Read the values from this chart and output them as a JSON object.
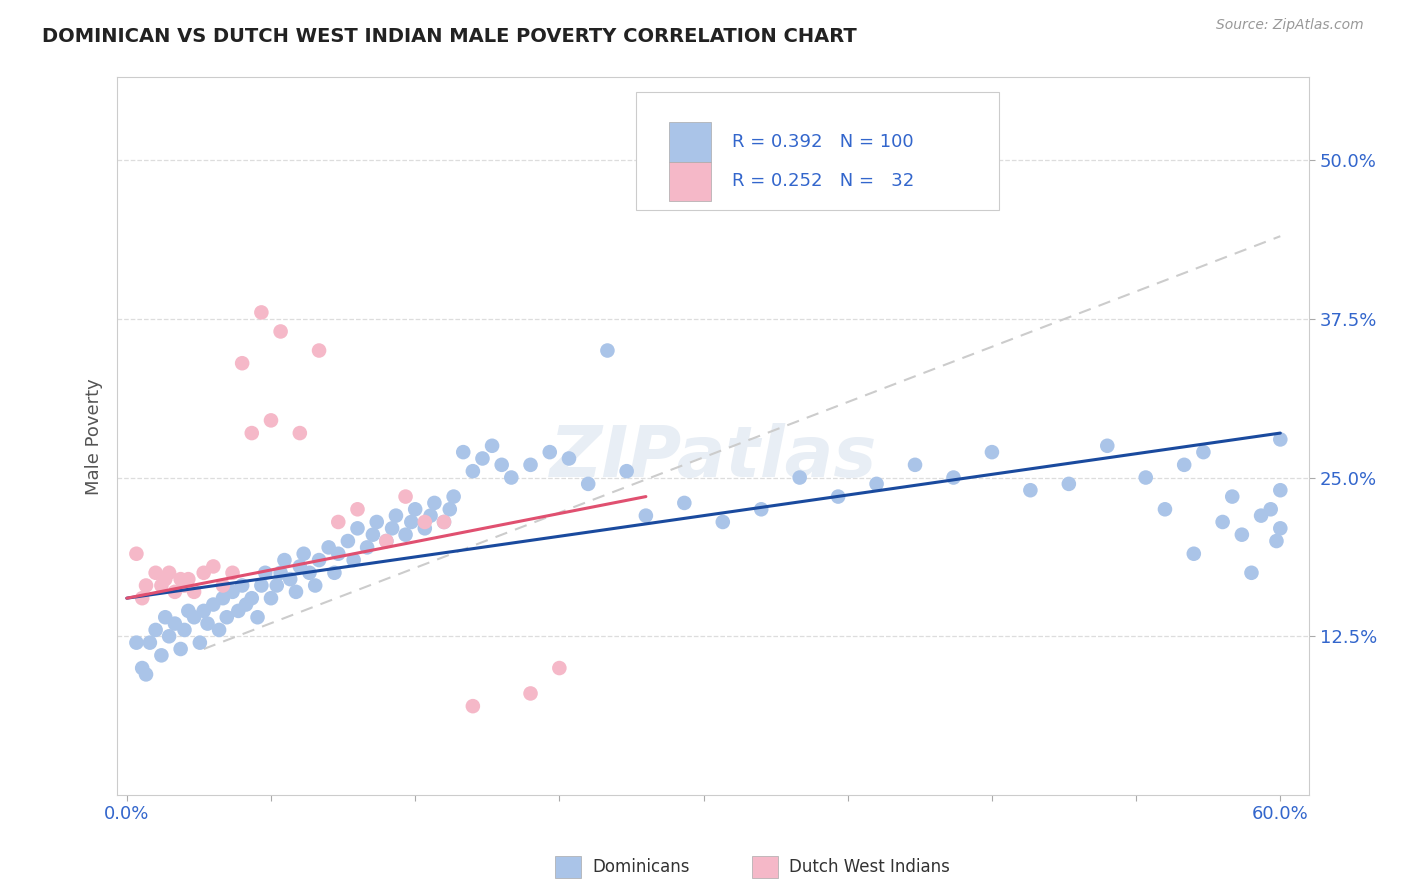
{
  "title": "DOMINICAN VS DUTCH WEST INDIAN MALE POVERTY CORRELATION CHART",
  "source": "Source: ZipAtlas.com",
  "ylabel": "Male Poverty",
  "xlim": [
    -0.005,
    0.615
  ],
  "ylim": [
    0.0,
    0.565
  ],
  "xticks": [
    0.0,
    0.075,
    0.15,
    0.225,
    0.3,
    0.375,
    0.45,
    0.525,
    0.6
  ],
  "xticklabels": [
    "0.0%",
    "",
    "",
    "",
    "",
    "",
    "",
    "",
    "60.0%"
  ],
  "yticks": [
    0.125,
    0.25,
    0.375,
    0.5
  ],
  "yticklabels": [
    "12.5%",
    "25.0%",
    "37.5%",
    "50.0%"
  ],
  "blue_color": "#aac4e8",
  "blue_line_color": "#1a4a9e",
  "pink_color": "#f5b8c8",
  "pink_line_color": "#e05070",
  "gray_line_color": "#cccccc",
  "background_color": "#ffffff",
  "grid_color": "#dddddd",
  "title_color": "#222222",
  "axis_label_color": "#555555",
  "tick_color_blue": "#3366cc",
  "watermark_color": "#e8eef5",
  "dom_line_x0": 0.0,
  "dom_line_y0": 0.155,
  "dom_line_x1": 0.6,
  "dom_line_y1": 0.285,
  "dutch_line_x0": 0.0,
  "dutch_line_y0": 0.155,
  "dutch_line_x1": 0.27,
  "dutch_line_y1": 0.235,
  "gray_line_x0": 0.04,
  "gray_line_y0": 0.115,
  "gray_line_x1": 0.6,
  "gray_line_y1": 0.44,
  "dominicans_x": [
    0.005,
    0.008,
    0.01,
    0.012,
    0.015,
    0.018,
    0.02,
    0.022,
    0.025,
    0.028,
    0.03,
    0.032,
    0.035,
    0.038,
    0.04,
    0.042,
    0.045,
    0.048,
    0.05,
    0.052,
    0.055,
    0.058,
    0.06,
    0.062,
    0.065,
    0.068,
    0.07,
    0.072,
    0.075,
    0.078,
    0.08,
    0.082,
    0.085,
    0.088,
    0.09,
    0.092,
    0.095,
    0.098,
    0.1,
    0.105,
    0.108,
    0.11,
    0.115,
    0.118,
    0.12,
    0.125,
    0.128,
    0.13,
    0.135,
    0.138,
    0.14,
    0.145,
    0.148,
    0.15,
    0.155,
    0.158,
    0.16,
    0.165,
    0.168,
    0.17,
    0.175,
    0.18,
    0.185,
    0.19,
    0.195,
    0.2,
    0.21,
    0.22,
    0.23,
    0.24,
    0.25,
    0.26,
    0.27,
    0.29,
    0.31,
    0.33,
    0.35,
    0.37,
    0.39,
    0.41,
    0.43,
    0.45,
    0.47,
    0.49,
    0.51,
    0.53,
    0.54,
    0.55,
    0.555,
    0.56,
    0.57,
    0.575,
    0.58,
    0.585,
    0.59,
    0.595,
    0.598,
    0.6,
    0.6,
    0.6
  ],
  "dominicans_y": [
    0.12,
    0.1,
    0.095,
    0.12,
    0.13,
    0.11,
    0.14,
    0.125,
    0.135,
    0.115,
    0.13,
    0.145,
    0.14,
    0.12,
    0.145,
    0.135,
    0.15,
    0.13,
    0.155,
    0.14,
    0.16,
    0.145,
    0.165,
    0.15,
    0.155,
    0.14,
    0.165,
    0.175,
    0.155,
    0.165,
    0.175,
    0.185,
    0.17,
    0.16,
    0.18,
    0.19,
    0.175,
    0.165,
    0.185,
    0.195,
    0.175,
    0.19,
    0.2,
    0.185,
    0.21,
    0.195,
    0.205,
    0.215,
    0.2,
    0.21,
    0.22,
    0.205,
    0.215,
    0.225,
    0.21,
    0.22,
    0.23,
    0.215,
    0.225,
    0.235,
    0.27,
    0.255,
    0.265,
    0.275,
    0.26,
    0.25,
    0.26,
    0.27,
    0.265,
    0.245,
    0.35,
    0.255,
    0.22,
    0.23,
    0.215,
    0.225,
    0.25,
    0.235,
    0.245,
    0.26,
    0.25,
    0.27,
    0.24,
    0.245,
    0.275,
    0.25,
    0.225,
    0.26,
    0.19,
    0.27,
    0.215,
    0.235,
    0.205,
    0.175,
    0.22,
    0.225,
    0.2,
    0.28,
    0.24,
    0.21
  ],
  "dutch_x": [
    0.005,
    0.008,
    0.01,
    0.015,
    0.018,
    0.02,
    0.022,
    0.025,
    0.028,
    0.03,
    0.032,
    0.035,
    0.04,
    0.045,
    0.05,
    0.055,
    0.06,
    0.065,
    0.07,
    0.075,
    0.08,
    0.09,
    0.1,
    0.11,
    0.12,
    0.135,
    0.145,
    0.155,
    0.165,
    0.18,
    0.21,
    0.225
  ],
  "dutch_y": [
    0.19,
    0.155,
    0.165,
    0.175,
    0.165,
    0.17,
    0.175,
    0.16,
    0.17,
    0.165,
    0.17,
    0.16,
    0.175,
    0.18,
    0.165,
    0.175,
    0.34,
    0.285,
    0.38,
    0.295,
    0.365,
    0.285,
    0.35,
    0.215,
    0.225,
    0.2,
    0.235,
    0.215,
    0.215,
    0.07,
    0.08,
    0.1
  ]
}
